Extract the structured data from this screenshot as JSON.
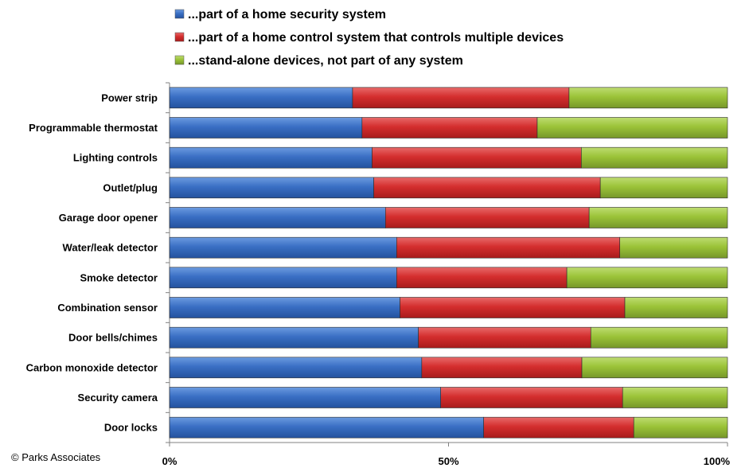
{
  "chart_data": {
    "type": "bar",
    "orientation": "horizontal",
    "stacked": "percent",
    "title": "",
    "xlabel": "",
    "ylabel": "",
    "xlim": [
      0,
      100
    ],
    "x_ticks": [
      "0%",
      "50%",
      "100%"
    ],
    "legend_position": "top",
    "grid": false,
    "categories": [
      "Power strip",
      "Programmable thermostat",
      "Lighting controls",
      "Outlet/plug",
      "Garage door opener",
      "Water/leak detector",
      "Smoke detector",
      "Combination sensor",
      "Door bells/chimes",
      "Carbon monoxide detector",
      "Security camera",
      "Door locks"
    ],
    "series": [
      {
        "name": "...part of a home security system",
        "color": "#3A6FC4",
        "values": [
          32.8,
          34.5,
          36.3,
          36.6,
          38.7,
          40.7,
          40.7,
          41.3,
          44.6,
          45.2,
          48.6,
          56.3
        ]
      },
      {
        "name": "...part of a home control system that controls multiple devices",
        "color": "#D42E2E",
        "values": [
          38.8,
          31.4,
          37.5,
          40.6,
          36.5,
          40.0,
          30.5,
          40.3,
          30.9,
          28.7,
          32.6,
          26.9
        ]
      },
      {
        "name": "...stand-alone devices, not part of any system",
        "color": "#9BC338",
        "values": [
          28.4,
          34.1,
          26.2,
          22.8,
          24.8,
          19.3,
          28.8,
          18.4,
          24.5,
          26.1,
          18.8,
          16.8
        ]
      }
    ]
  },
  "footer": {
    "copyright": "© Parks Associates"
  }
}
